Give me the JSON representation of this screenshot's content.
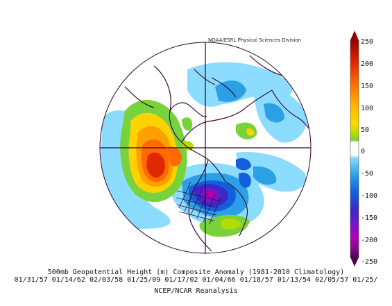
{
  "credit": "NOAA/ESRL Physical Sciences Division",
  "caption": {
    "line1": "500mb Geopotential Height (m) Composite Anomaly (1981-2010 Climatology)",
    "line2": "01/31/57 01/14/62 02/03/58 01/25/09 01/17/02 01/04/66 01/18/57 01/13/54 02/05/57 01/25/",
    "line3": "NCEP/NCAR Reanalysis"
  },
  "colorbar": {
    "labels": [
      "250",
      "200",
      "150",
      "100",
      "50",
      "0",
      "-50",
      "-100",
      "-150",
      "-200",
      "-250"
    ],
    "colors": [
      "#a00000",
      "#e02800",
      "#ff6a00",
      "#ffa000",
      "#ffd200",
      "#b4dc00",
      "#78d23c",
      "#ffffff",
      "#8cdcff",
      "#2ca0e6",
      "#1460dc",
      "#3c28c8",
      "#7814c8",
      "#b400b4",
      "#820a8c",
      "#500050"
    ]
  }
}
